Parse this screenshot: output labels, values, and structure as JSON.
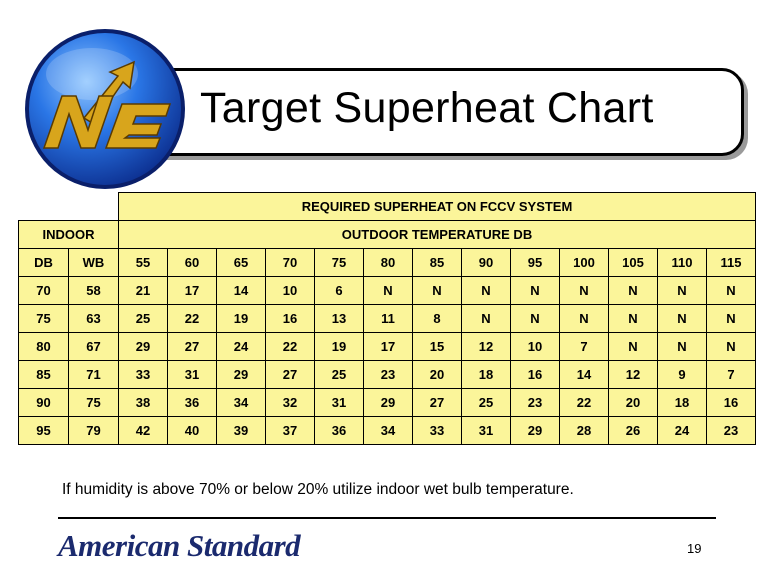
{
  "slide": {
    "title": "Target Superheat Chart",
    "logo_text": "NE",
    "note": "If humidity is above 70% or below 20% utilize indoor wet bulb temperature.",
    "brand": "American Standard",
    "page_number": "19",
    "colors": {
      "table_fill": "#fbf59a",
      "logo_blue": "#1f5fd0",
      "logo_gold": "#d8a51c",
      "brand_navy": "#1b2a6e"
    }
  },
  "table": {
    "caption": "REQUIRED SUPERHEAT ON FCCV SYSTEM",
    "indoor_header": "INDOOR",
    "outdoor_header": "OUTDOOR TEMPERATURE DB",
    "indoor_cols": [
      "DB",
      "WB"
    ],
    "outdoor_cols": [
      "55",
      "60",
      "65",
      "70",
      "75",
      "80",
      "85",
      "90",
      "95",
      "100",
      "105",
      "110",
      "115"
    ],
    "rows": [
      {
        "db": "70",
        "wb": "58",
        "values": [
          "21",
          "17",
          "14",
          "10",
          "6",
          "N",
          "N",
          "N",
          "N",
          "N",
          "N",
          "N",
          "N"
        ]
      },
      {
        "db": "75",
        "wb": "63",
        "values": [
          "25",
          "22",
          "19",
          "16",
          "13",
          "11",
          "8",
          "N",
          "N",
          "N",
          "N",
          "N",
          "N"
        ]
      },
      {
        "db": "80",
        "wb": "67",
        "values": [
          "29",
          "27",
          "24",
          "22",
          "19",
          "17",
          "15",
          "12",
          "10",
          "7",
          "N",
          "N",
          "N"
        ]
      },
      {
        "db": "85",
        "wb": "71",
        "values": [
          "33",
          "31",
          "29",
          "27",
          "25",
          "23",
          "20",
          "18",
          "16",
          "14",
          "12",
          "9",
          "7"
        ]
      },
      {
        "db": "90",
        "wb": "75",
        "values": [
          "38",
          "36",
          "34",
          "32",
          "31",
          "29",
          "27",
          "25",
          "23",
          "22",
          "20",
          "18",
          "16"
        ]
      },
      {
        "db": "95",
        "wb": "79",
        "values": [
          "42",
          "40",
          "39",
          "37",
          "36",
          "34",
          "33",
          "31",
          "29",
          "28",
          "26",
          "24",
          "23"
        ]
      }
    ]
  }
}
